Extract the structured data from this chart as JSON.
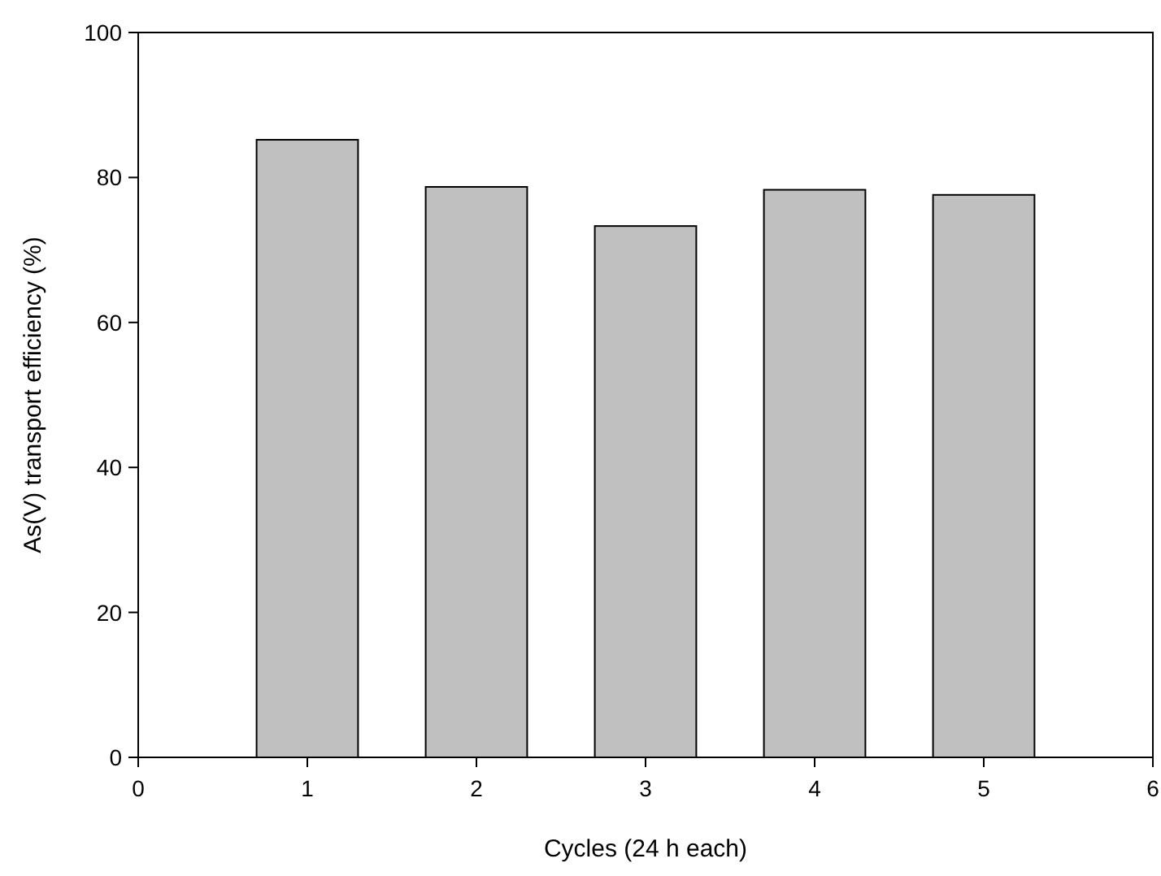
{
  "chart_data": {
    "type": "bar",
    "xlabel": "Cycles (24 h each)",
    "ylabel": "As(V) transport efficiency (%)",
    "x": [
      1,
      2,
      3,
      4,
      5
    ],
    "values": [
      85.2,
      78.7,
      73.3,
      78.3,
      77.6
    ],
    "color": "#c0c0c0",
    "xlim": [
      0,
      6
    ],
    "xticks": [
      0,
      1,
      2,
      3,
      4,
      5,
      6
    ],
    "ylim": [
      0,
      100
    ],
    "yticks": [
      0,
      20,
      40,
      60,
      80,
      100
    ]
  }
}
